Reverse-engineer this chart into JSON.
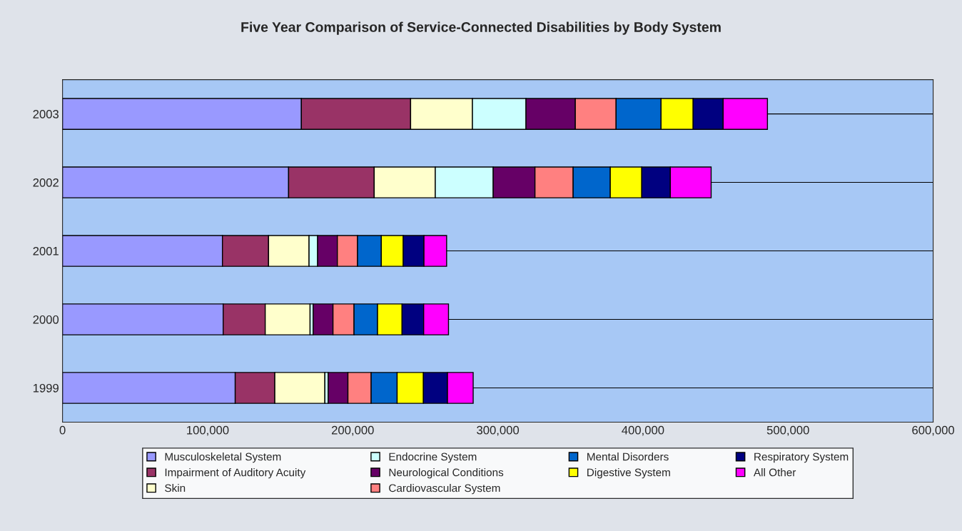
{
  "chart_data": {
    "type": "bar",
    "orientation": "horizontal",
    "stacked": true,
    "title": "Five Year Comparison of Service-Connected Disabilities by Body System",
    "categories": [
      "2003",
      "2002",
      "2001",
      "2000",
      "1999"
    ],
    "series": [
      {
        "name": "Musculoskeletal System",
        "color": "#9999ff",
        "values": [
          164600,
          155800,
          110200,
          110700,
          119000
        ]
      },
      {
        "name": "Impairment of Auditory Acuity",
        "color": "#993366",
        "values": [
          75300,
          59000,
          31800,
          29000,
          27300
        ]
      },
      {
        "name": "Skin",
        "color": "#ffffcc",
        "values": [
          42600,
          42100,
          27900,
          30900,
          34500
        ]
      },
      {
        "name": "Endocrine System",
        "color": "#ccffff",
        "values": [
          36900,
          39900,
          5900,
          2100,
          2300
        ]
      },
      {
        "name": "Neurological Conditions",
        "color": "#660066",
        "values": [
          34000,
          28800,
          13600,
          13700,
          13600
        ]
      },
      {
        "name": "Cardiovascular System",
        "color": "#ff8080",
        "values": [
          28100,
          26300,
          13900,
          14500,
          16000
        ]
      },
      {
        "name": "Mental Disorders",
        "color": "#0066cc",
        "values": [
          31000,
          25600,
          16400,
          16200,
          17900
        ]
      },
      {
        "name": "Digestive System",
        "color": "#ffff00",
        "values": [
          22100,
          21700,
          15100,
          16900,
          18100
        ]
      },
      {
        "name": "Respiratory System",
        "color": "#000080",
        "values": [
          20700,
          19700,
          14300,
          14900,
          16600
        ]
      },
      {
        "name": "All Other",
        "color": "#ff00ff",
        "values": [
          30500,
          28100,
          15600,
          17100,
          17700
        ]
      }
    ],
    "xlim": [
      0,
      600000
    ],
    "xticks": [
      0,
      {
        "value": 100000,
        "label": "100,000"
      },
      {
        "value": 200000,
        "label": "200,000"
      },
      {
        "value": 300000,
        "label": "300,000"
      },
      {
        "value": 400000,
        "label": "400,000"
      },
      {
        "value": 500000,
        "label": "500,000"
      },
      {
        "value": 600000,
        "label": "600,000"
      }
    ],
    "grid": "y",
    "legend": "bottom"
  }
}
